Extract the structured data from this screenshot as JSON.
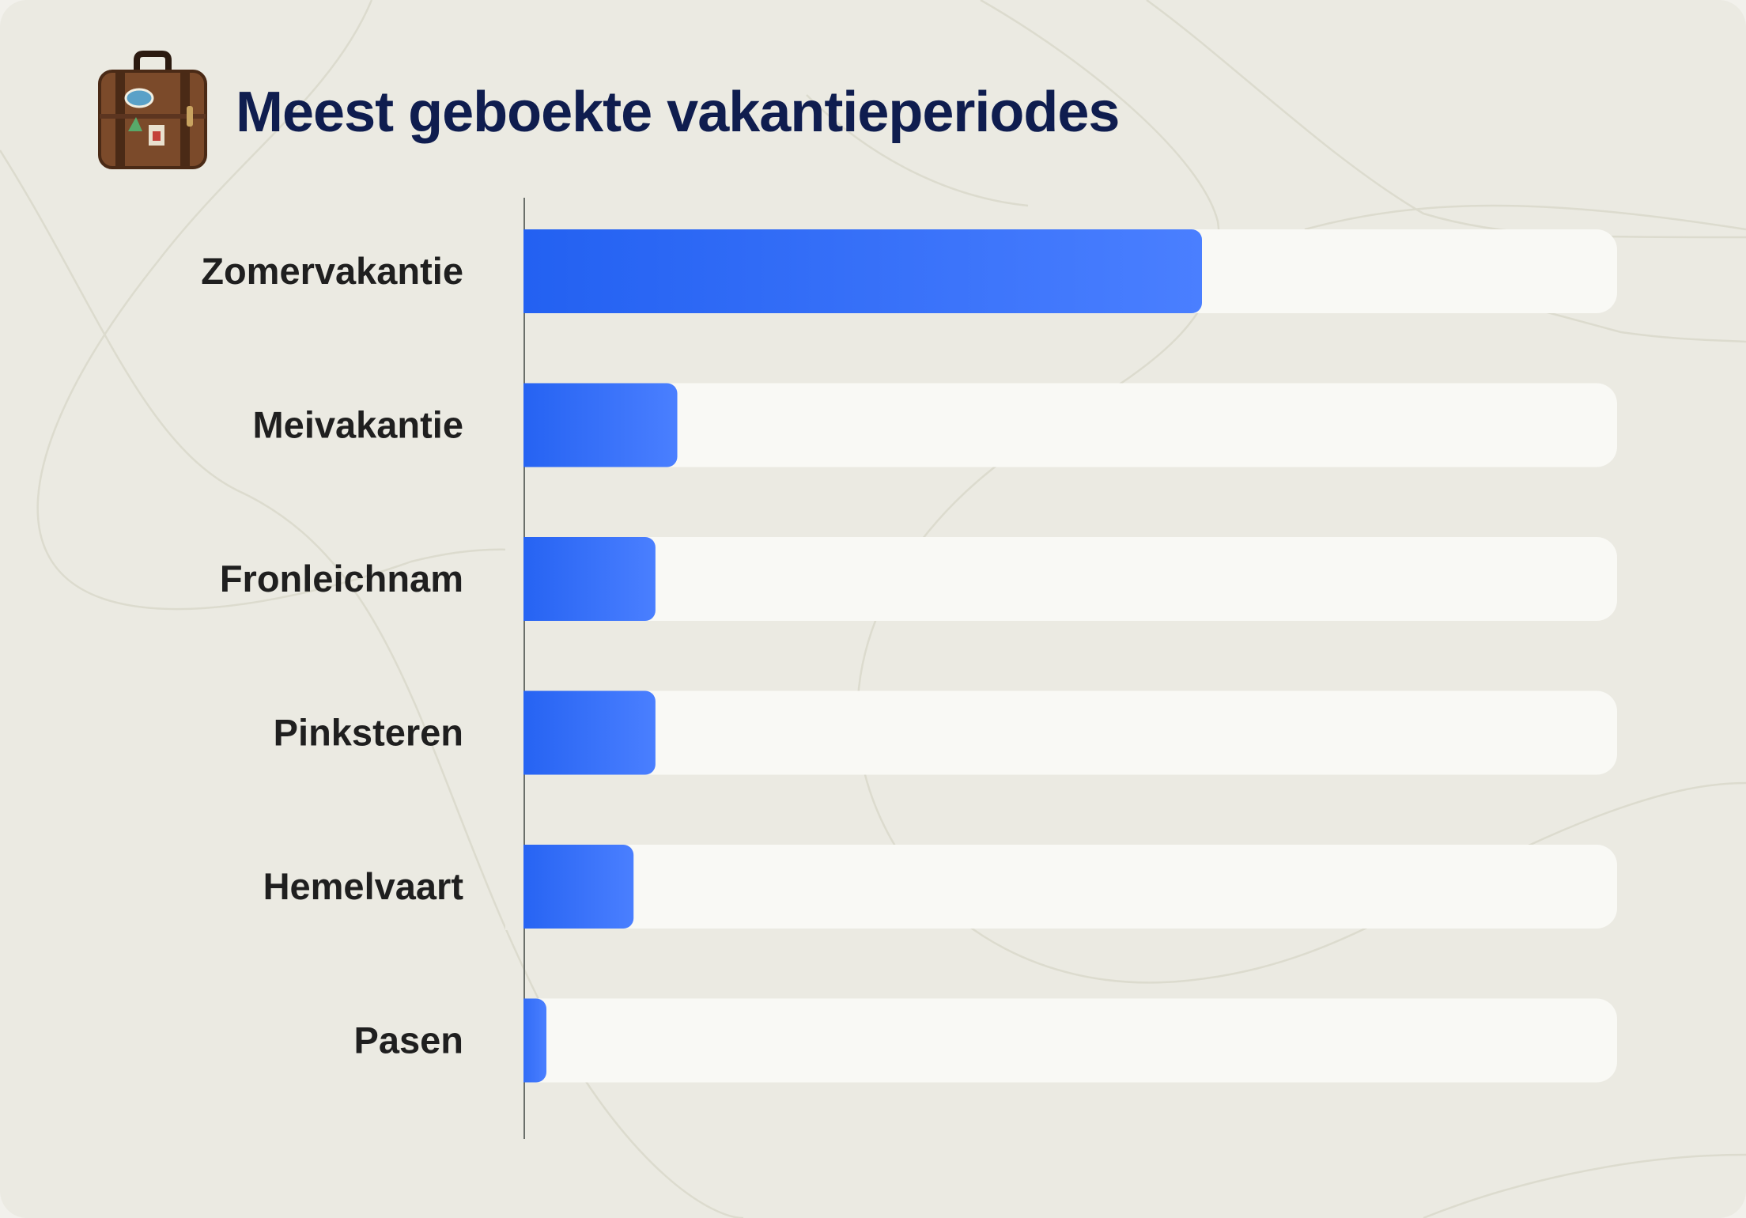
{
  "title": "Meest geboekte vakantieperiodes",
  "icon": "suitcase-icon",
  "colors": {
    "background": "#ebeae2",
    "track": "#f9f9f5",
    "bar_start": "#2260f1",
    "bar_end": "#4a7fff",
    "title": "#0f1d4f",
    "label": "#1f1f1f"
  },
  "chart_data": {
    "type": "bar",
    "orientation": "horizontal",
    "title": "Meest geboekte vakantieperiodes",
    "categories": [
      "Zomervakantie",
      "Meivakantie",
      "Fronleichnam",
      "Pinksteren",
      "Hemelvaart",
      "Pasen"
    ],
    "values": [
      62,
      14,
      12,
      12,
      10,
      2
    ],
    "xlim": [
      0,
      100
    ],
    "grid": false,
    "legend": "none"
  }
}
